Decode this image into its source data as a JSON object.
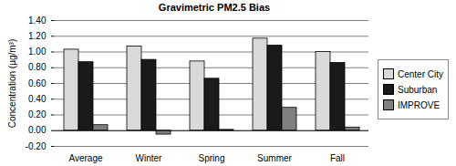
{
  "chart_data": {
    "type": "bar",
    "title": "Gravimetric PM2.5 Bias",
    "y_label": "Concentration (µg/m³)",
    "categories": [
      "Average",
      "Winter",
      "Spring",
      "Summer",
      "Fall"
    ],
    "series": [
      {
        "name": "Center City",
        "color": "#d9d9d9",
        "values": [
          1.03,
          1.07,
          0.88,
          1.17,
          1.0
        ]
      },
      {
        "name": "Suburban",
        "color": "#1a1a1a",
        "values": [
          0.87,
          0.9,
          0.66,
          1.08,
          0.86
        ]
      },
      {
        "name": "IMPROVE",
        "color": "#808080",
        "values": [
          0.07,
          -0.05,
          0.01,
          0.29,
          0.04
        ]
      }
    ],
    "ylim": [
      -0.2,
      1.4
    ],
    "yticks": [
      {
        "value": -0.2,
        "label": "-0.20"
      },
      {
        "value": 0,
        "label": "0.00"
      },
      {
        "value": 0.2,
        "label": "0.20"
      },
      {
        "value": 0.4,
        "label": "0.40"
      },
      {
        "value": 0.6,
        "label": "0.60"
      },
      {
        "value": 0.8,
        "label": "0.80"
      },
      {
        "value": 1,
        "label": "1.00"
      },
      {
        "value": 1.2,
        "label": "1.20"
      },
      {
        "value": 1.4,
        "label": "1.40"
      }
    ],
    "grid": true,
    "legend": "right"
  }
}
